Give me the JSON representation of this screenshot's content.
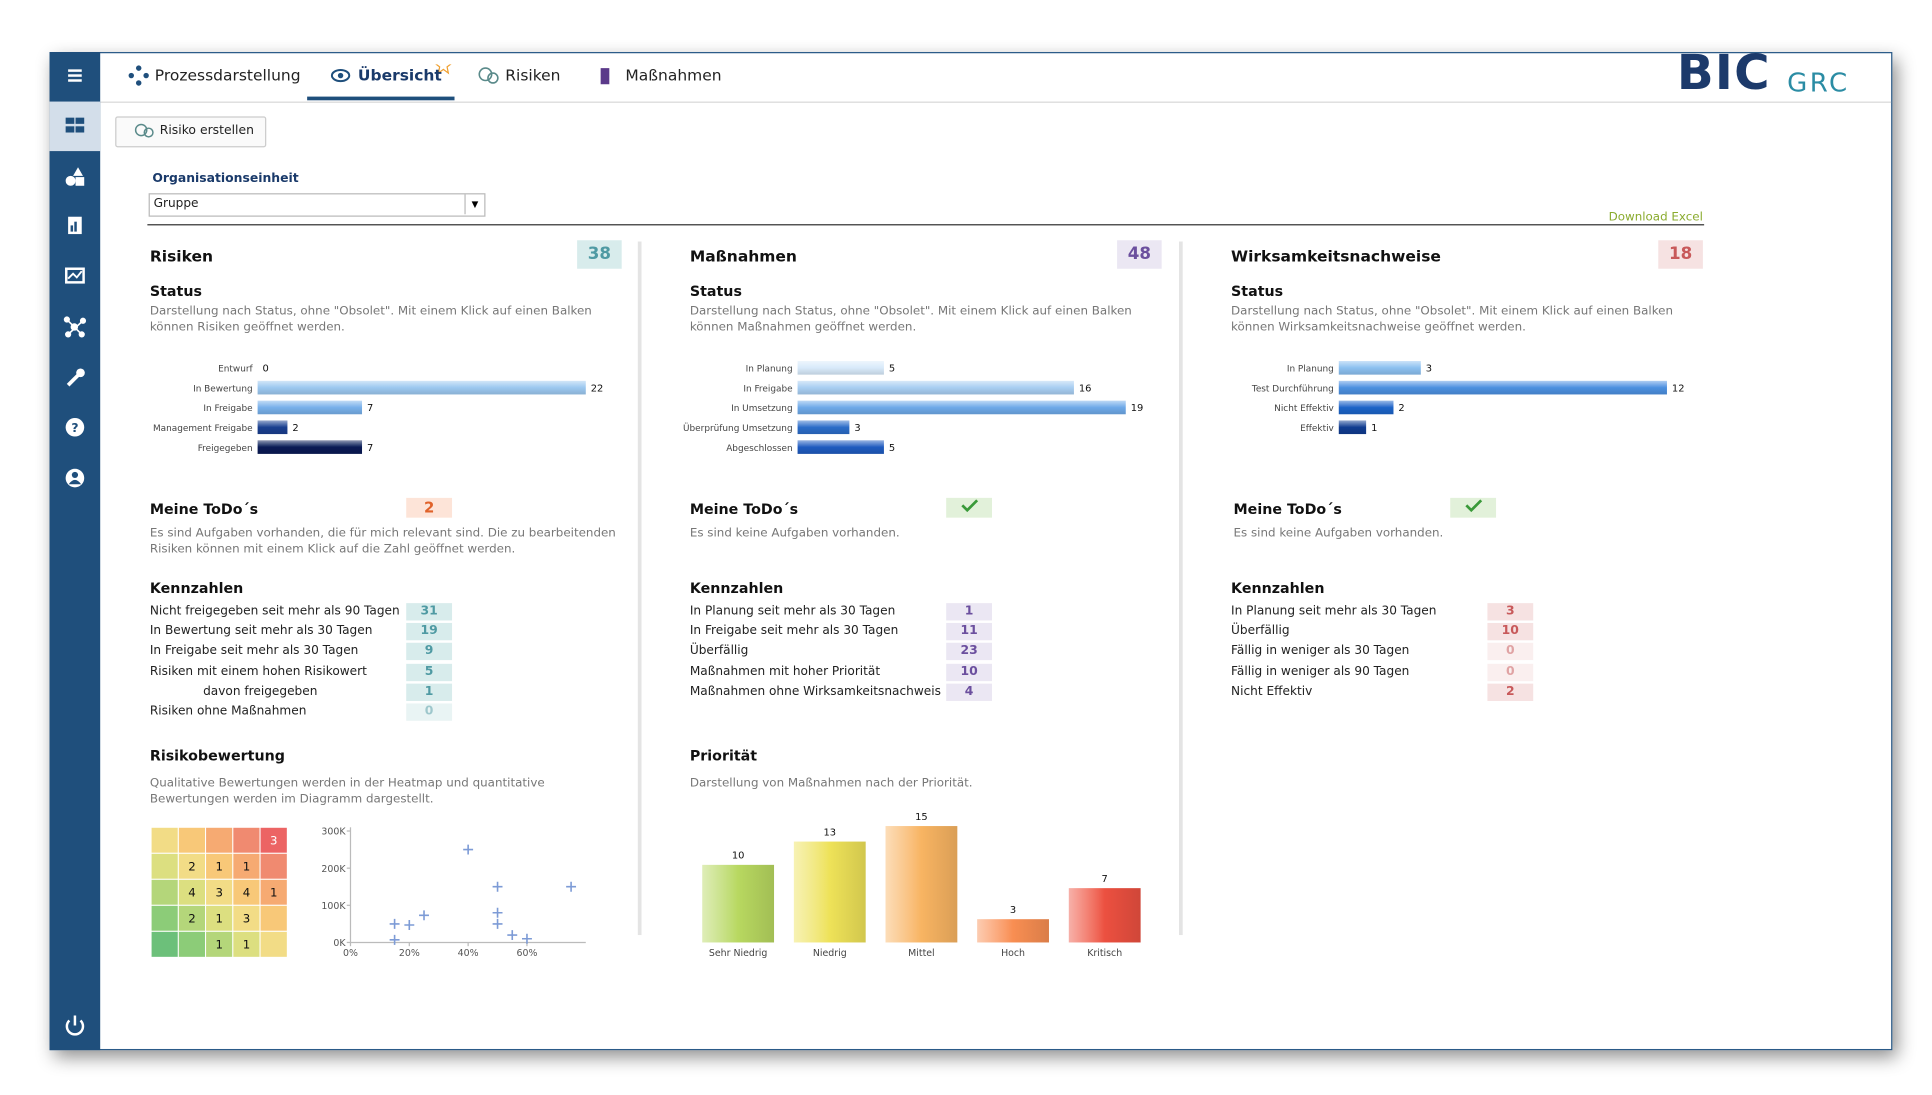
{
  "tabs": [
    "Prozessdarstellung",
    "Übersicht",
    "Risiken",
    "Maßnahmen"
  ],
  "active_tab": 1,
  "logo": {
    "main": "BIC",
    "sub": "GRC"
  },
  "create_button": "Risiko erstellen",
  "org_unit": {
    "label": "Organisationseinheit",
    "value": "Gruppe"
  },
  "download": "Download Excel",
  "panels": [
    {
      "title": "Risiken",
      "count": 38,
      "status_title": "Status",
      "status_desc": "Darstellung nach Status, ohne \"Obsolet\". Mit einem Klick auf einen Balken können Risiken geöffnet werden.",
      "status_chart": {
        "type": "bar",
        "categories": [
          "Entwurf",
          "In Bewertung",
          "In Freigabe",
          "Management Freigabe",
          "Freigegeben"
        ],
        "values": [
          0,
          22,
          7,
          2,
          7
        ],
        "colors": [
          "#9cc8f0",
          "#9cc8f0",
          "#78b0ea",
          "#1a3f8f",
          "#0a1a55"
        ]
      },
      "todo": {
        "title": "Meine ToDo´s",
        "count": 2,
        "desc": "Es sind Aufgaben vorhanden, die für mich relevant sind. Die zu bearbeitenden Risiken können mit einem Klick auf die Zahl geöffnet werden."
      },
      "kpi": {
        "title": "Kennzahlen",
        "rows": [
          {
            "label": "Nicht freigegeben seit mehr als 90 Tagen",
            "value": 31
          },
          {
            "label": "In Bewertung seit mehr als 30 Tagen",
            "value": 19
          },
          {
            "label": "In Freigabe seit mehr als 30 Tagen",
            "value": 9
          },
          {
            "label": "Risiken mit einem hohen Risikowert",
            "value": 5
          },
          {
            "label": "davon freigegeben",
            "value": 1,
            "indent": true
          },
          {
            "label": "Risiken ohne Maßnahmen",
            "value": 0
          }
        ]
      },
      "rating": {
        "title": "Risikobewertung",
        "desc": "Qualitative Bewertungen werden in der Heatmap und quantitative Bewertungen werden im Diagramm dargestellt.",
        "heatmap": {
          "type": "heatmap",
          "cells": [
            [
              null,
              null,
              null,
              null,
              3
            ],
            [
              null,
              2,
              1,
              1,
              null
            ],
            [
              null,
              4,
              3,
              4,
              1
            ],
            [
              null,
              2,
              1,
              3,
              null
            ],
            [
              null,
              null,
              1,
              1,
              null
            ]
          ],
          "colors": [
            "#6cc07a",
            "#8ccc78",
            "#b4d67a",
            "#dcdf80",
            "#f2dc86",
            "#f8c878",
            "#f6aa72",
            "#f08a70",
            "#ec6464"
          ]
        },
        "scatter": {
          "type": "scatter",
          "color": "#7d9bd6",
          "x": [
            15,
            15,
            20,
            25,
            40,
            50,
            50,
            50,
            55,
            60,
            75
          ],
          "y": [
            7000,
            50000,
            47000,
            73000,
            250000,
            150000,
            80000,
            50000,
            20000,
            10000,
            150000
          ],
          "xlim": [
            0,
            80
          ],
          "ylim": [
            0,
            310000
          ],
          "xticks": [
            {
              "value": 0,
              "label": "0%"
            },
            {
              "value": 20,
              "label": "20%"
            },
            {
              "value": 40,
              "label": "40%"
            },
            {
              "value": 60,
              "label": "60%"
            }
          ],
          "yticks": [
            {
              "value": 0,
              "label": "0K"
            },
            {
              "value": 100000,
              "label": "100K"
            },
            {
              "value": 200000,
              "label": "200K"
            },
            {
              "value": 300000,
              "label": "300K"
            }
          ]
        }
      }
    },
    {
      "title": "Maßnahmen",
      "count": 48,
      "status_title": "Status",
      "status_desc": "Darstellung nach Status, ohne \"Obsolet\". Mit einem Klick auf einen Balken können Maßnahmen geöffnet werden.",
      "status_chart": {
        "type": "bar",
        "categories": [
          "In Planung",
          "In Freigabe",
          "In Umsetzung",
          "Überprüfung Umsetzung",
          "Abgeschlossen"
        ],
        "values": [
          5,
          16,
          19,
          3,
          5
        ],
        "colors": [
          "#d8eafa",
          "#a8cef2",
          "#6ea9e8",
          "#2b6cc8",
          "#1f5bbf"
        ]
      },
      "todo": {
        "title": "Meine ToDo´s",
        "desc": "Es sind keine Aufgaben vorhanden."
      },
      "kpi": {
        "title": "Kennzahlen",
        "rows": [
          {
            "label": "In Planung seit mehr als 30 Tagen",
            "value": 1
          },
          {
            "label": "In Freigabe seit mehr als 30 Tagen",
            "value": 11
          },
          {
            "label": "Überfällig",
            "value": 23
          },
          {
            "label": "Maßnahmen mit hoher Priorität",
            "value": 10
          },
          {
            "label": "Maßnahmen ohne Wirksamkeitsnachweis",
            "value": 4
          }
        ]
      },
      "priority": {
        "title": "Priorität",
        "desc": "Darstellung von Maßnahmen nach der Priorität.",
        "chart": {
          "type": "bar",
          "categories": [
            "Sehr Niedrig",
            "Niedrig",
            "Mittel",
            "Hoch",
            "Kritisch"
          ],
          "values": [
            10,
            13,
            15,
            3,
            7
          ],
          "colors": [
            "#b8d860",
            "#eee258",
            "#f8b462",
            "#f88e52",
            "#ec5040"
          ]
        }
      }
    },
    {
      "title": "Wirksamkeitsnachweise",
      "count": 18,
      "status_title": "Status",
      "status_desc": "Darstellung nach Status, ohne \"Obsolet\". Mit einem Klick auf einen Balken können Wirksamkeitsnachweise geöffnet werden.",
      "status_chart": {
        "type": "bar",
        "categories": [
          "In Planung",
          "Test Durchführung",
          "Nicht Effektiv",
          "Effektiv"
        ],
        "values": [
          3,
          12,
          2,
          1
        ],
        "colors": [
          "#8cc0f0",
          "#4c90e0",
          "#1c64c8",
          "#103c90"
        ]
      },
      "todo": {
        "title": "Meine ToDo´s",
        "desc": "Es sind keine Aufgaben vorhanden."
      },
      "kpi": {
        "title": "Kennzahlen",
        "rows": [
          {
            "label": "In Planung seit mehr als 30 Tagen",
            "value": 3
          },
          {
            "label": "Überfällig",
            "value": 10
          },
          {
            "label": "Fällig in weniger als 30 Tagen",
            "value": 0
          },
          {
            "label": "Fällig in weniger als 90 Tagen",
            "value": 0
          },
          {
            "label": "Nicht Effektiv",
            "value": 2
          }
        ]
      }
    }
  ]
}
